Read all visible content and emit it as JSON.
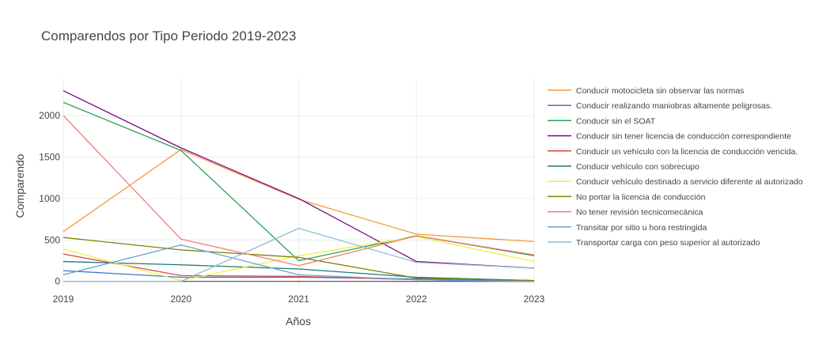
{
  "chart_data": {
    "type": "line",
    "title": "Comparendos por Tipo Periodo 2019-2023",
    "xlabel": "Años",
    "ylabel": "Comparendo",
    "x": [
      2019,
      2020,
      2021,
      2022,
      2023
    ],
    "x_ticks": [
      "2019",
      "2020",
      "2021",
      "2022",
      "2023"
    ],
    "y_ticks": [
      "0",
      "500",
      "1000",
      "1500",
      "2000"
    ],
    "xlim": [
      2019,
      2023
    ],
    "ylim": [
      -60,
      2440
    ],
    "grid": true,
    "legend_position": "right",
    "series": [
      {
        "name": "Conducir motocicleta sin observar las normas",
        "color": "#f59a3c",
        "values": [
          600,
          1590,
          990,
          570,
          480
        ]
      },
      {
        "name": "Conducir realizando maniobras altamente peligrosas.",
        "color": "#3b78c2",
        "values": [
          130,
          50,
          50,
          30,
          10
        ]
      },
      {
        "name": "Conducir sin el SOAT",
        "color": "#2ca05a",
        "values": [
          2160,
          1580,
          250,
          550,
          310
        ]
      },
      {
        "name": "Conducir sin tener licencia de conducción correspondiente",
        "color": "#7b0a86",
        "values": [
          2300,
          1610,
          1000,
          240,
          160
        ]
      },
      {
        "name": "Conducir un vehículo con la licencia de conducción vencida.",
        "color": "#d64a4a",
        "values": [
          330,
          70,
          60,
          20,
          0
        ]
      },
      {
        "name": "Conducir vehículo con sobrecupo",
        "color": "#1a7b7b",
        "values": [
          240,
          200,
          150,
          50,
          10
        ]
      },
      {
        "name": "Conducir vehículo destinado a servicio diferente al autorizado",
        "color": "#f2ef45",
        "values": [
          390,
          10,
          310,
          540,
          240
        ]
      },
      {
        "name": "No portar la licencia de conducción",
        "color": "#808000",
        "values": [
          530,
          380,
          290,
          40,
          10
        ]
      },
      {
        "name": "No tener revisión tecnicomecánica",
        "color": "#f08070",
        "values": [
          2000,
          510,
          190,
          550,
          320
        ]
      },
      {
        "name": "Transitar por sitio u hora restringida",
        "color": "#6a9fd4",
        "values": [
          80,
          440,
          80,
          20,
          0
        ]
      },
      {
        "name": "Transportar carga con peso superior al autorizado",
        "color": "#8fbcd2",
        "values": [
          0,
          0,
          640,
          230,
          160
        ]
      }
    ]
  }
}
